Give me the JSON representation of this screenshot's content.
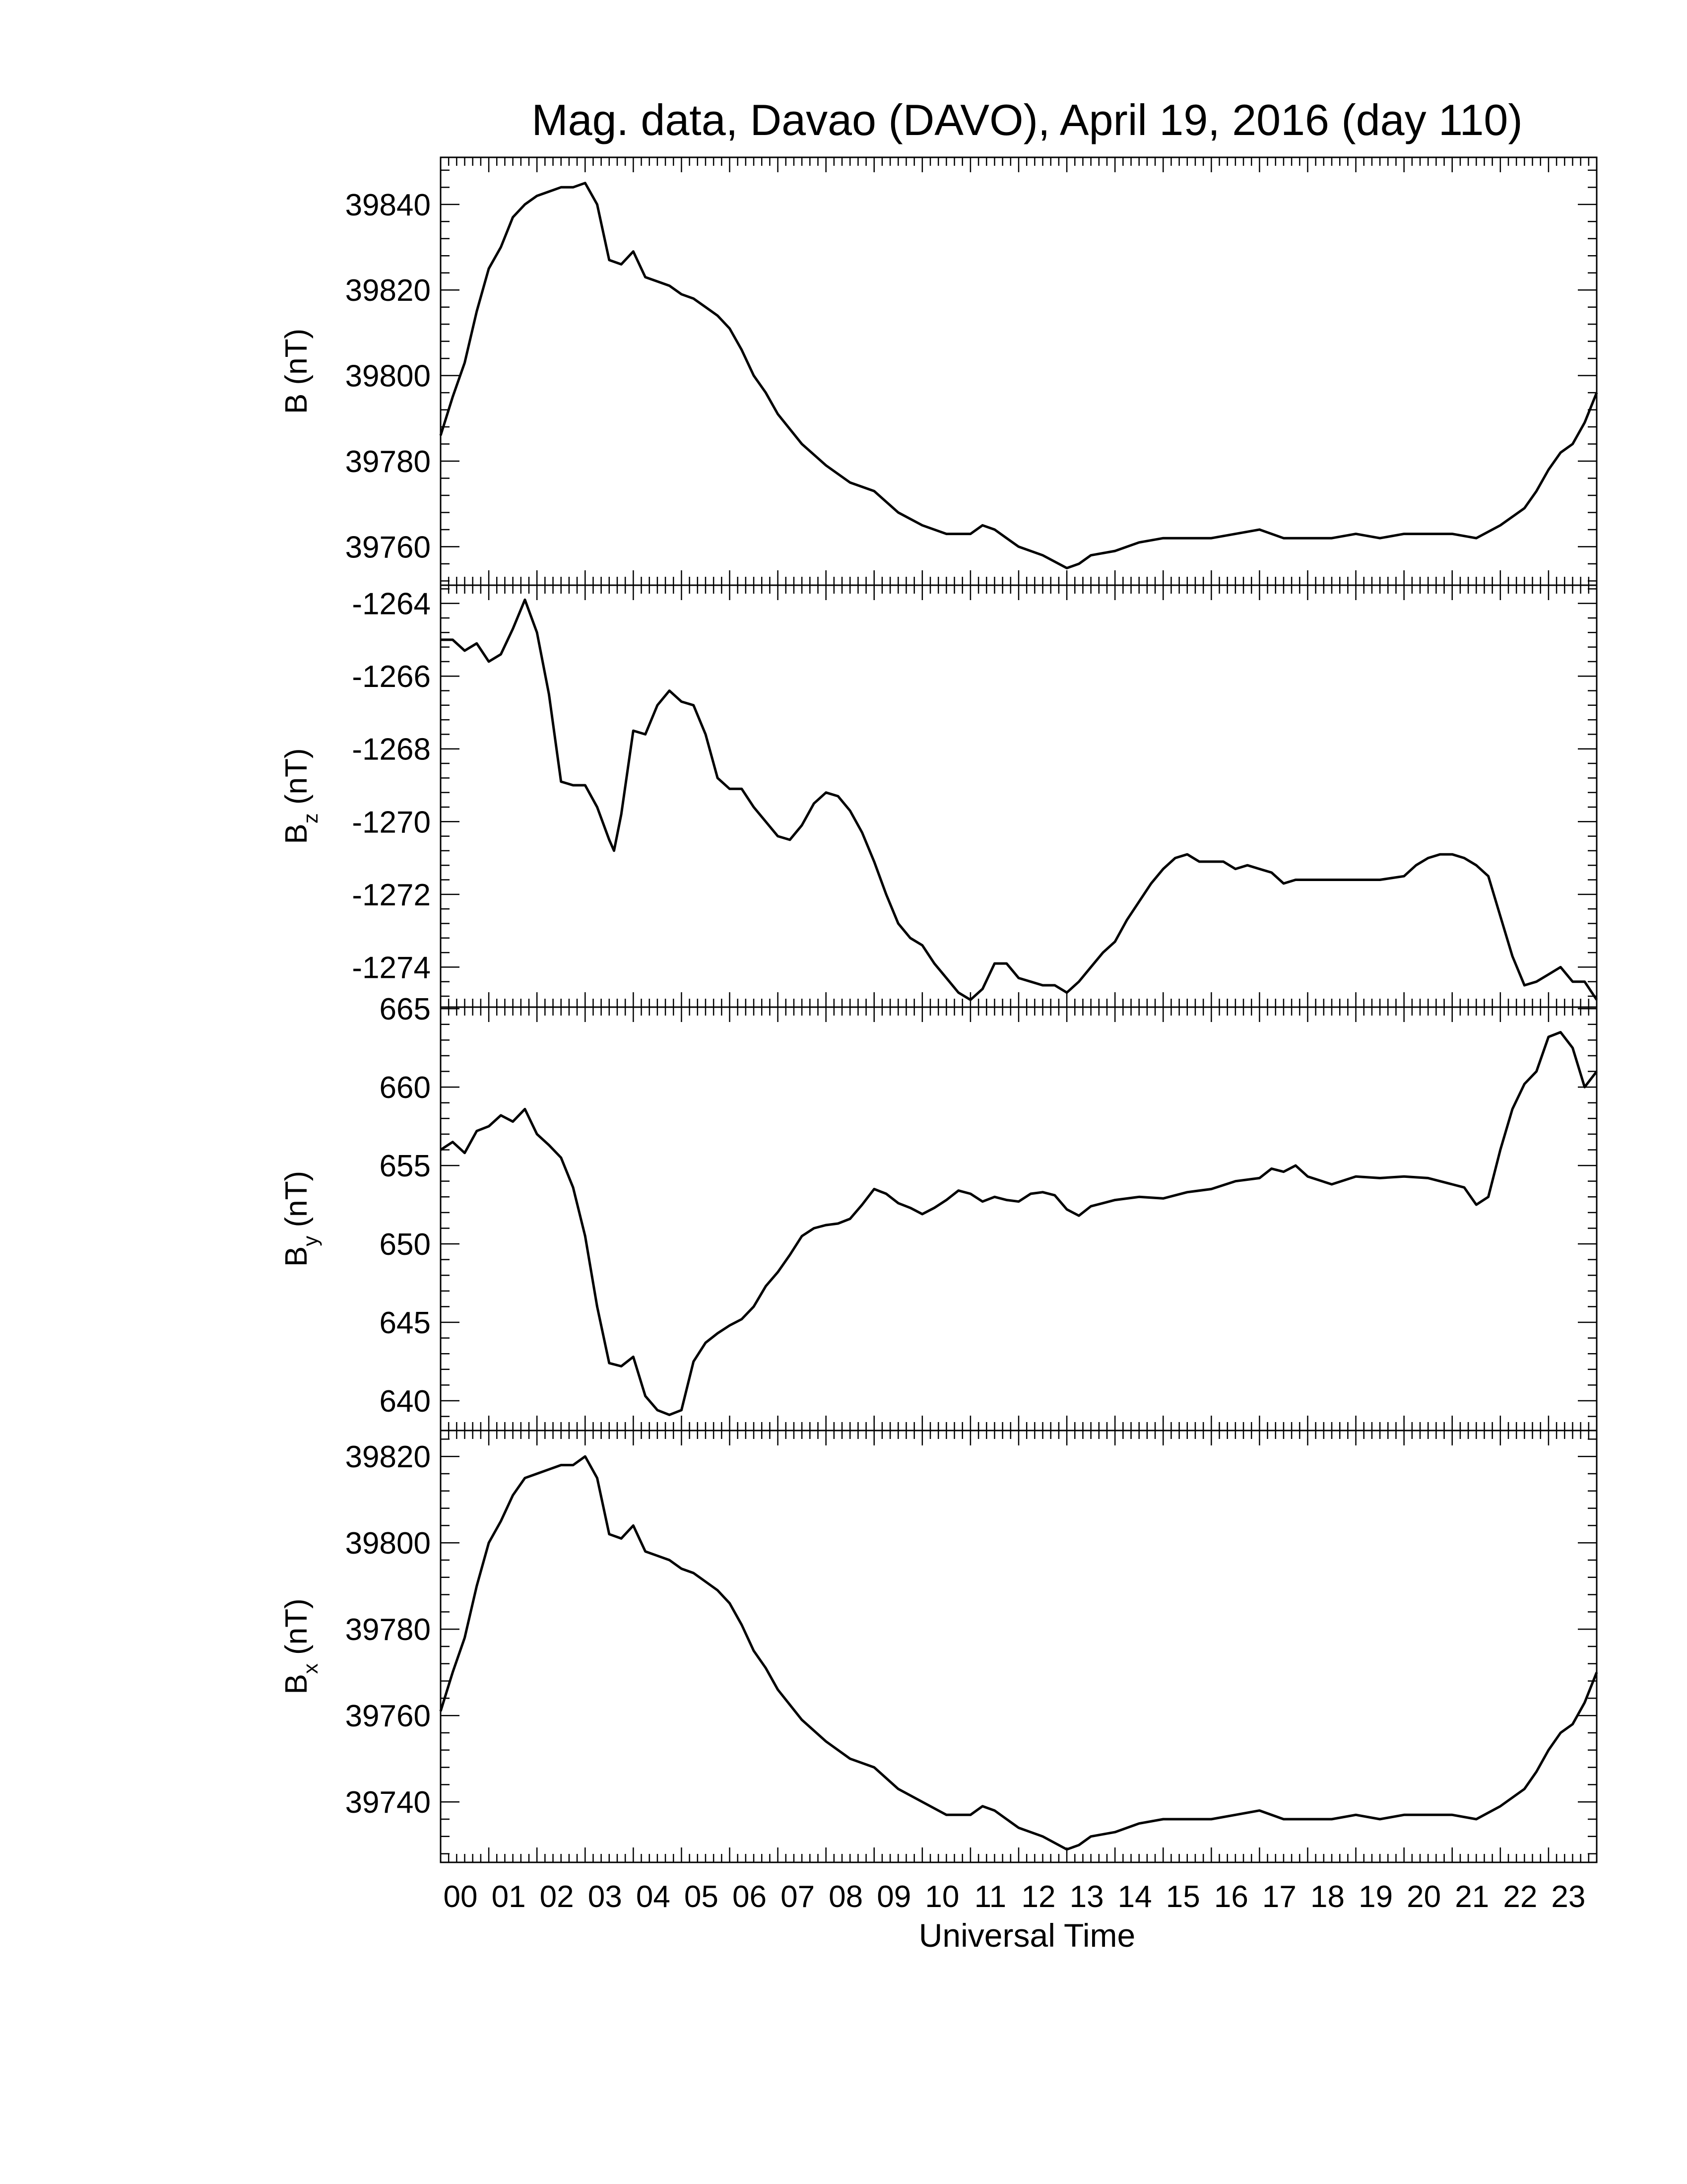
{
  "figure": {
    "title": "Mag. data, Davao (DAVO), April 19, 2016 (day 110)",
    "xlabel": "Universal Time"
  },
  "chart_data": [
    {
      "type": "line",
      "panel": "B",
      "ylabel": "B (nT)",
      "ylabel_main": "B",
      "ylabel_sub": "",
      "ylabel_unit": " (nT)",
      "xlim": [
        0,
        24
      ],
      "ylim": [
        39751,
        39851
      ],
      "yticks": [
        39760,
        39780,
        39800,
        39820,
        39840
      ],
      "ytick_labels": [
        "39760",
        "39780",
        "39800",
        "39820",
        "39840"
      ],
      "x": [
        0,
        0.25,
        0.5,
        0.75,
        1,
        1.25,
        1.5,
        1.75,
        2,
        2.25,
        2.5,
        2.75,
        3,
        3.25,
        3.5,
        3.75,
        4,
        4.25,
        4.5,
        4.75,
        5,
        5.25,
        5.5,
        5.75,
        6,
        6.25,
        6.5,
        6.75,
        7,
        7.5,
        8,
        8.5,
        9,
        9.5,
        10,
        10.5,
        11,
        11.25,
        11.5,
        11.75,
        12,
        12.5,
        13,
        13.25,
        13.5,
        14,
        14.5,
        15,
        15.5,
        16,
        16.5,
        17,
        17.5,
        18,
        18.5,
        19,
        19.5,
        20,
        20.5,
        21,
        21.5,
        22,
        22.25,
        22.5,
        22.75,
        23,
        23.25,
        23.5,
        23.75,
        24
      ],
      "y": [
        39786,
        39795,
        39803,
        39815,
        39825,
        39830,
        39837,
        39840,
        39842,
        39843,
        39844,
        39844,
        39845,
        39840,
        39827,
        39826,
        39829,
        39823,
        39822,
        39821,
        39819,
        39818,
        39816,
        39814,
        39811,
        39806,
        39800,
        39796,
        39791,
        39784,
        39779,
        39775,
        39773,
        39768,
        39765,
        39763,
        39763,
        39765,
        39764,
        39762,
        39760,
        39758,
        39755,
        39756,
        39758,
        39759,
        39761,
        39762,
        39762,
        39762,
        39763,
        39764,
        39762,
        39762,
        39762,
        39763,
        39762,
        39763,
        39763,
        39763,
        39762,
        39765,
        39767,
        39769,
        39773,
        39778,
        39782,
        39784,
        39789,
        39796
      ]
    },
    {
      "type": "line",
      "panel": "Bz",
      "ylabel": "Bz (nT)",
      "ylabel_main": "B",
      "ylabel_sub": "z",
      "ylabel_unit": " (nT)",
      "xlim": [
        0,
        24
      ],
      "ylim": [
        -1275.1,
        -1263.5
      ],
      "yticks": [
        -1264,
        -1266,
        -1268,
        -1270,
        -1272,
        -1274
      ],
      "ytick_labels": [
        "-1264",
        "-1266",
        "-1268",
        "-1270",
        "-1272",
        "-1274"
      ],
      "x": [
        0,
        0.25,
        0.5,
        0.75,
        1,
        1.25,
        1.5,
        1.75,
        2,
        2.25,
        2.5,
        2.75,
        3,
        3.25,
        3.5,
        3.6,
        3.75,
        4,
        4.25,
        4.5,
        4.75,
        5,
        5.25,
        5.5,
        5.75,
        6,
        6.25,
        6.5,
        6.75,
        7,
        7.25,
        7.5,
        7.75,
        8,
        8.25,
        8.5,
        8.75,
        9,
        9.25,
        9.5,
        9.75,
        10,
        10.25,
        10.5,
        10.75,
        11,
        11.25,
        11.5,
        11.75,
        12,
        12.25,
        12.5,
        12.75,
        13,
        13.25,
        13.5,
        13.75,
        14,
        14.25,
        14.5,
        14.75,
        15,
        15.25,
        15.5,
        15.75,
        16,
        16.25,
        16.5,
        16.75,
        17,
        17.25,
        17.5,
        17.75,
        18,
        18.5,
        19,
        19.5,
        20,
        20.25,
        20.5,
        20.75,
        21,
        21.25,
        21.5,
        21.75,
        22,
        22.25,
        22.5,
        22.75,
        23,
        23.25,
        23.5,
        23.75,
        24
      ],
      "y": [
        -1265,
        -1265,
        -1265.3,
        -1265.1,
        -1265.6,
        -1265.4,
        -1264.7,
        -1263.9,
        -1264.8,
        -1266.5,
        -1268.9,
        -1269,
        -1269,
        -1269.6,
        -1270.5,
        -1270.8,
        -1269.8,
        -1267.5,
        -1267.6,
        -1266.8,
        -1266.4,
        -1266.7,
        -1266.8,
        -1267.6,
        -1268.8,
        -1269.1,
        -1269.1,
        -1269.6,
        -1270,
        -1270.4,
        -1270.5,
        -1270.1,
        -1269.5,
        -1269.2,
        -1269.3,
        -1269.7,
        -1270.3,
        -1271.1,
        -1272,
        -1272.8,
        -1273.2,
        -1273.4,
        -1273.9,
        -1274.3,
        -1274.7,
        -1274.9,
        -1274.6,
        -1273.9,
        -1273.9,
        -1274.3,
        -1274.4,
        -1274.5,
        -1274.5,
        -1274.7,
        -1274.4,
        -1274,
        -1273.6,
        -1273.3,
        -1272.7,
        -1272.2,
        -1271.7,
        -1271.3,
        -1271,
        -1270.9,
        -1271.1,
        -1271.1,
        -1271.1,
        -1271.3,
        -1271.2,
        -1271.3,
        -1271.4,
        -1271.7,
        -1271.6,
        -1271.6,
        -1271.6,
        -1271.6,
        -1271.6,
        -1271.5,
        -1271.2,
        -1271,
        -1270.9,
        -1270.9,
        -1271,
        -1271.2,
        -1271.5,
        -1272.6,
        -1273.7,
        -1274.5,
        -1274.4,
        -1274.2,
        -1274,
        -1274.4,
        -1274.4,
        -1274.9
      ]
    },
    {
      "type": "line",
      "panel": "By",
      "ylabel": "By (nT)",
      "ylabel_main": "B",
      "ylabel_sub": "y",
      "ylabel_unit": " (nT)",
      "xlim": [
        0,
        24
      ],
      "ylim": [
        638.1,
        665.1
      ],
      "yticks": [
        640,
        645,
        650,
        655,
        660,
        665
      ],
      "ytick_labels": [
        "640",
        "645",
        "650",
        "655",
        "660",
        "665"
      ],
      "x": [
        0,
        0.25,
        0.5,
        0.75,
        1,
        1.25,
        1.5,
        1.75,
        2,
        2.25,
        2.5,
        2.75,
        3,
        3.25,
        3.5,
        3.75,
        4,
        4.25,
        4.5,
        4.75,
        5,
        5.25,
        5.5,
        5.75,
        6,
        6.25,
        6.5,
        6.75,
        7,
        7.25,
        7.5,
        7.75,
        8,
        8.25,
        8.5,
        8.75,
        9,
        9.25,
        9.5,
        9.75,
        10,
        10.25,
        10.5,
        10.75,
        11,
        11.25,
        11.5,
        11.75,
        12,
        12.25,
        12.5,
        12.75,
        13,
        13.25,
        13.5,
        13.75,
        14,
        14.5,
        15,
        15.5,
        16,
        16.5,
        17,
        17.25,
        17.5,
        17.75,
        18,
        18.5,
        19,
        19.5,
        20,
        20.5,
        21,
        21.25,
        21.5,
        21.75,
        22,
        22.25,
        22.5,
        22.75,
        23,
        23.25,
        23.5,
        23.75,
        24
      ],
      "y": [
        656,
        656.5,
        655.8,
        657.2,
        657.5,
        658.2,
        657.8,
        658.6,
        657,
        656.3,
        655.5,
        653.6,
        650.5,
        646,
        642.4,
        642.2,
        642.8,
        640.3,
        639.4,
        639.1,
        639.4,
        642.5,
        643.7,
        644.3,
        644.8,
        645.2,
        646,
        647.3,
        648.2,
        649.3,
        650.5,
        651,
        651.2,
        651.3,
        651.6,
        652.5,
        653.5,
        653.2,
        652.6,
        652.3,
        651.9,
        652.3,
        652.8,
        653.4,
        653.2,
        652.7,
        653,
        652.8,
        652.7,
        653.2,
        653.3,
        653.1,
        652.2,
        651.8,
        652.4,
        652.6,
        652.8,
        653,
        652.9,
        653.3,
        653.5,
        654,
        654.2,
        654.8,
        654.6,
        655,
        654.3,
        653.8,
        654.3,
        654.2,
        654.3,
        654.2,
        653.8,
        653.6,
        652.5,
        653,
        656,
        658.6,
        660.2,
        661,
        663.2,
        663.5,
        662.5,
        660,
        661
      ]
    },
    {
      "type": "line",
      "panel": "Bx",
      "ylabel": "Bx (nT)",
      "ylabel_main": "B",
      "ylabel_sub": "x",
      "ylabel_unit": " (nT)",
      "xlim": [
        0,
        24
      ],
      "ylim": [
        39726,
        39826
      ],
      "yticks": [
        39740,
        39760,
        39780,
        39800,
        39820
      ],
      "ytick_labels": [
        "39740",
        "39760",
        "39780",
        "39800",
        "39820"
      ],
      "x": [
        0,
        0.25,
        0.5,
        0.75,
        1,
        1.25,
        1.5,
        1.75,
        2,
        2.25,
        2.5,
        2.75,
        3,
        3.25,
        3.5,
        3.75,
        4,
        4.25,
        4.5,
        4.75,
        5,
        5.25,
        5.5,
        5.75,
        6,
        6.25,
        6.5,
        6.75,
        7,
        7.5,
        8,
        8.5,
        9,
        9.5,
        10,
        10.5,
        11,
        11.25,
        11.5,
        11.75,
        12,
        12.5,
        13,
        13.25,
        13.5,
        14,
        14.5,
        15,
        15.5,
        16,
        16.5,
        17,
        17.5,
        18,
        18.5,
        19,
        19.5,
        20,
        20.5,
        21,
        21.5,
        22,
        22.25,
        22.5,
        22.75,
        23,
        23.25,
        23.5,
        23.75,
        24
      ],
      "y": [
        39761,
        39770,
        39778,
        39790,
        39800,
        39805,
        39811,
        39815,
        39816,
        39817,
        39818,
        39818,
        39820,
        39815,
        39802,
        39801,
        39804,
        39798,
        39797,
        39796,
        39794,
        39793,
        39791,
        39789,
        39786,
        39781,
        39775,
        39771,
        39766,
        39759,
        39754,
        39750,
        39748,
        39743,
        39740,
        39737,
        39737,
        39739,
        39738,
        39736,
        39734,
        39732,
        39729,
        39730,
        39732,
        39733,
        39735,
        39736,
        39736,
        39736,
        39737,
        39738,
        39736,
        39736,
        39736,
        39737,
        39736,
        39737,
        39737,
        39737,
        39736,
        39739,
        39741,
        39743,
        39747,
        39752,
        39756,
        39758,
        39763,
        39770
      ]
    }
  ],
  "x_axis": {
    "xlim": [
      0,
      24
    ],
    "tick_labels": [
      "00",
      "01",
      "02",
      "03",
      "04",
      "05",
      "06",
      "07",
      "08",
      "09",
      "10",
      "11",
      "12",
      "13",
      "14",
      "15",
      "16",
      "17",
      "18",
      "19",
      "20",
      "21",
      "22",
      "23"
    ]
  },
  "style": {
    "line_color": "#000000",
    "background": "#ffffff"
  }
}
